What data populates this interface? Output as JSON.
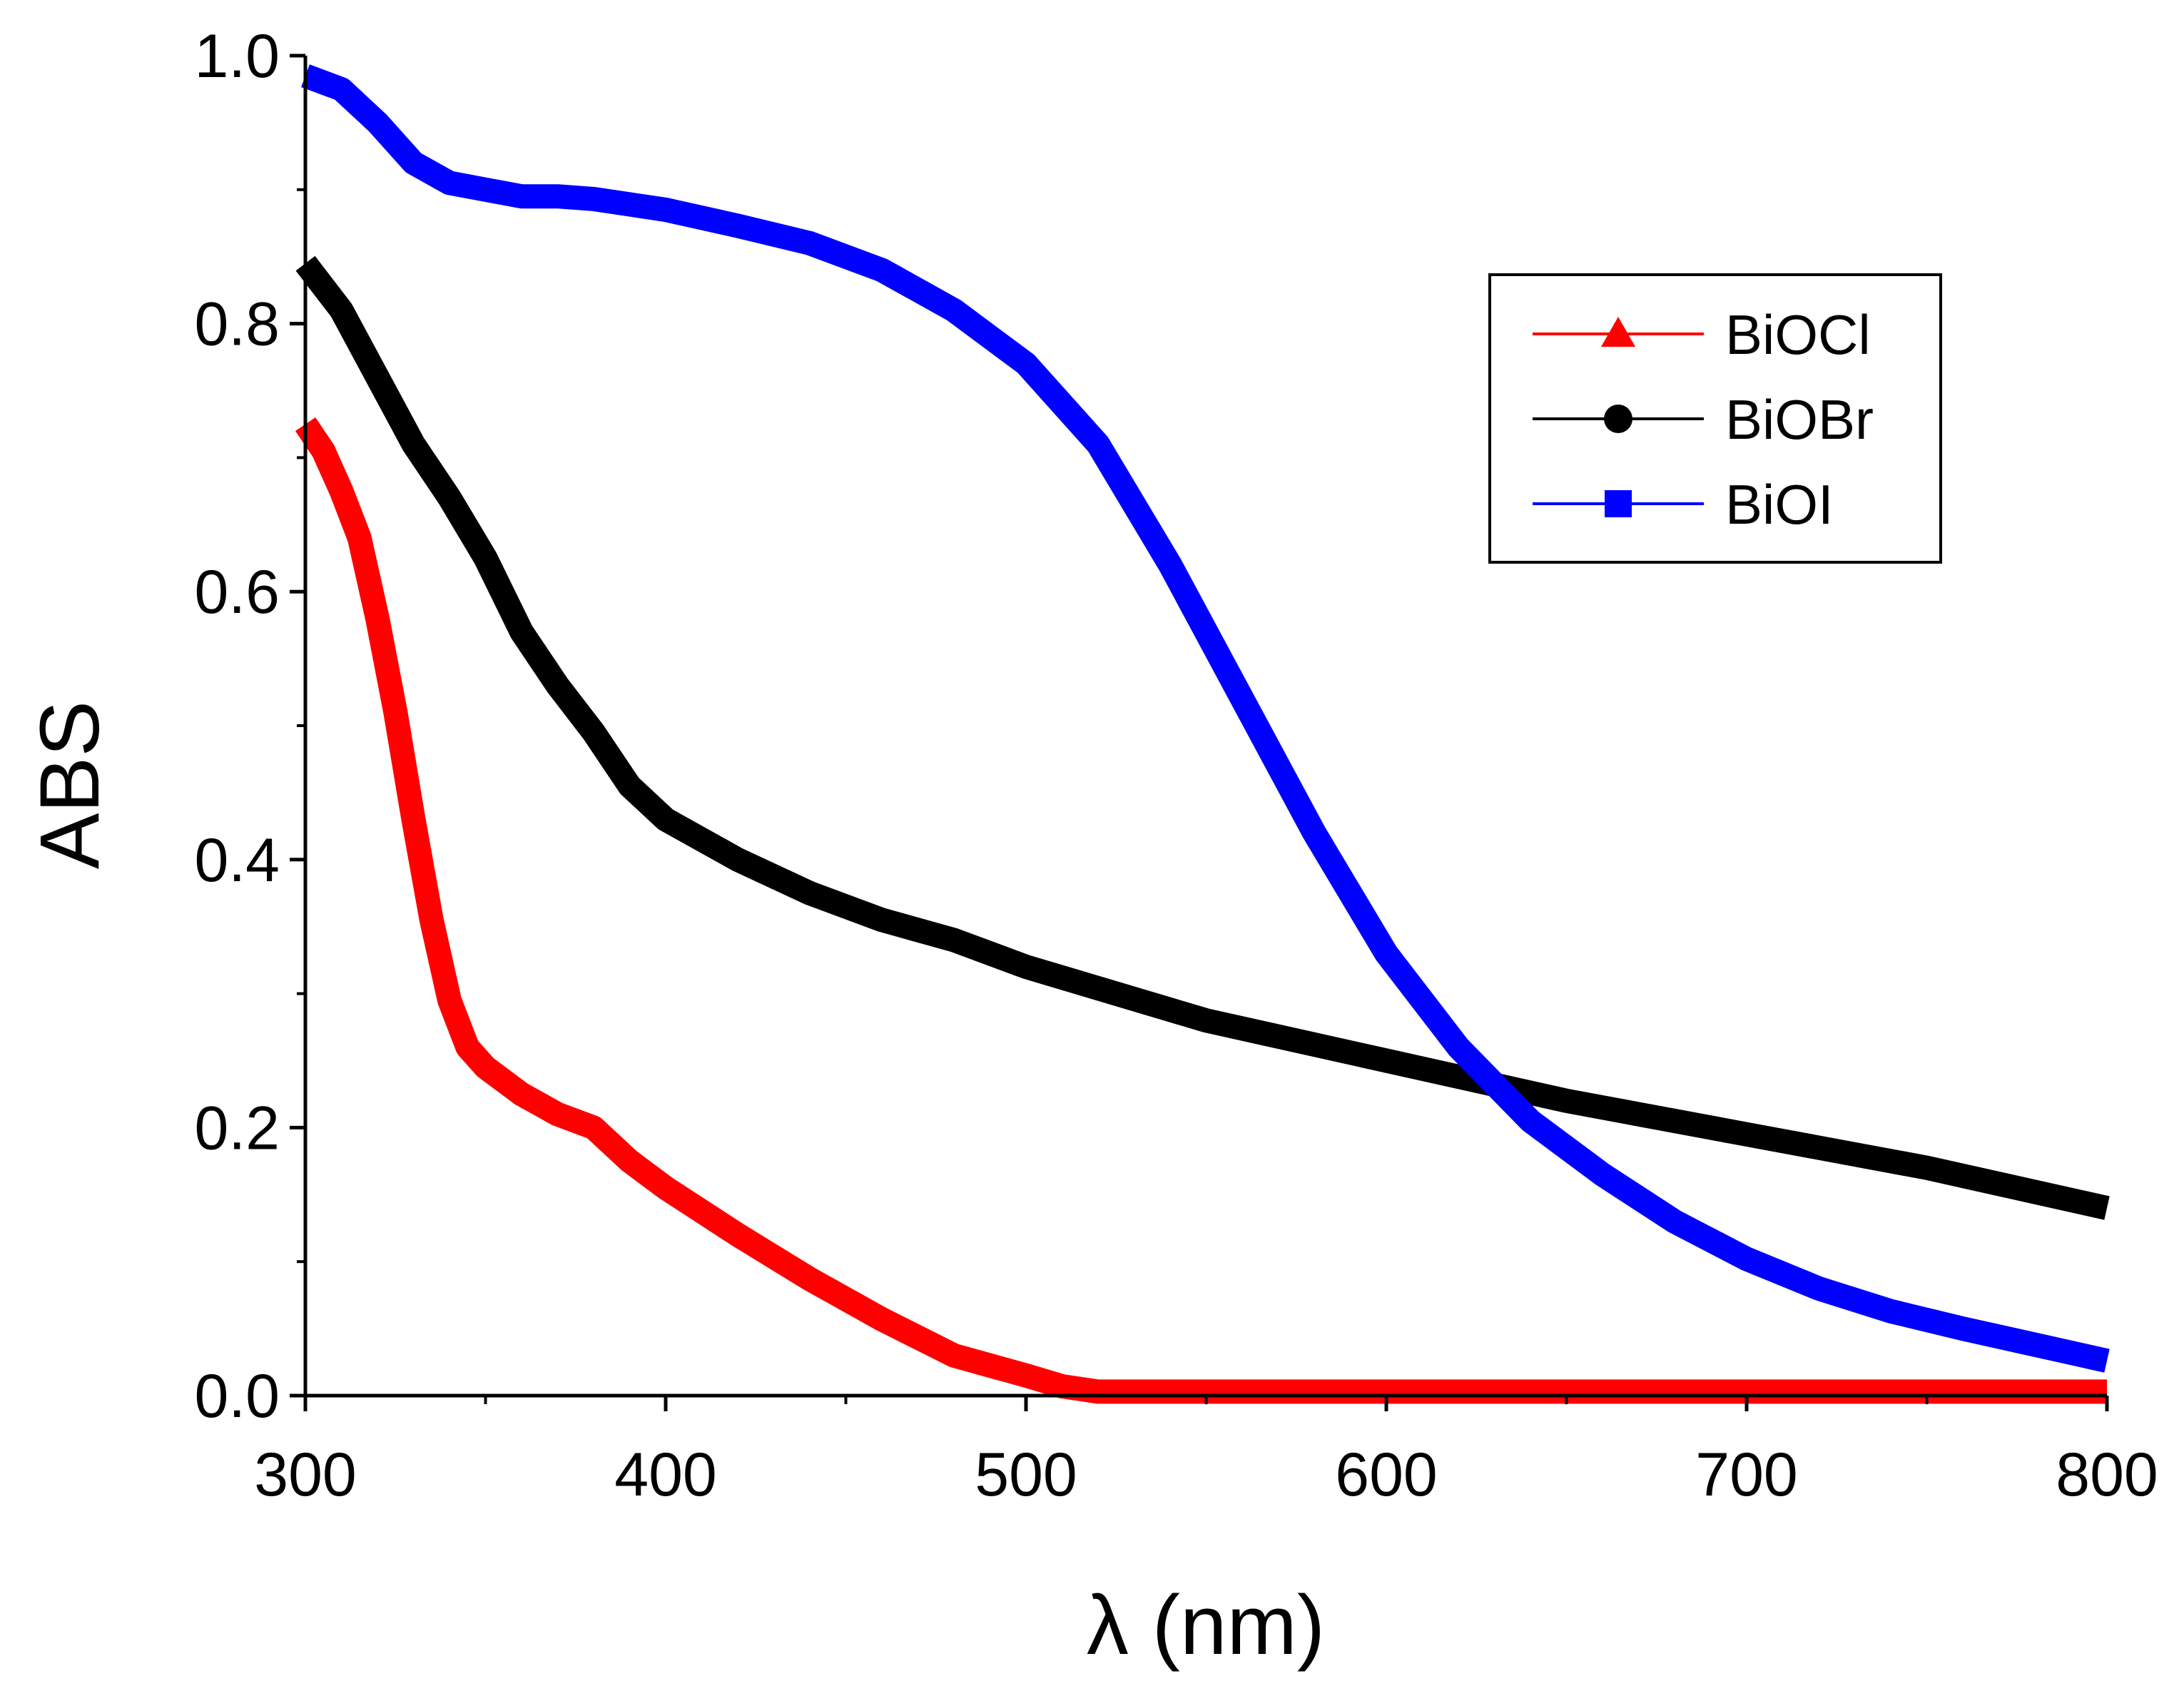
{
  "chart_data": {
    "type": "line",
    "title": "",
    "xlabel": "λ (nm)",
    "ylabel": "ABS",
    "xlim": [
      300,
      800
    ],
    "ylim": [
      0.0,
      1.0
    ],
    "xticks": [
      300,
      400,
      500,
      600,
      700,
      800
    ],
    "xtick_labels": [
      "300",
      "400",
      "500",
      "600",
      "700",
      "800"
    ],
    "yticks": [
      0.0,
      0.2,
      0.4,
      0.6,
      0.8,
      1.0
    ],
    "ytick_labels": [
      "0.0",
      "0.2",
      "0.4",
      "0.6",
      "0.8",
      "1.0"
    ],
    "legend_position": "top-right",
    "grid": false,
    "series": [
      {
        "name": "BiOCl",
        "color": "#ff0000",
        "marker": "triangle",
        "x": [
          300,
          305,
          310,
          315,
          320,
          325,
          330,
          335,
          340,
          345,
          350,
          360,
          370,
          380,
          390,
          400,
          420,
          440,
          460,
          480,
          500,
          510,
          520,
          530,
          560,
          600,
          650,
          700,
          750,
          800
        ],
        "y": [
          0.725,
          0.705,
          0.675,
          0.64,
          0.58,
          0.51,
          0.43,
          0.355,
          0.295,
          0.26,
          0.245,
          0.225,
          0.21,
          0.2,
          0.175,
          0.155,
          0.12,
          0.087,
          0.057,
          0.03,
          0.015,
          0.007,
          0.003,
          0.003,
          0.003,
          0.003,
          0.003,
          0.003,
          0.003,
          0.003
        ]
      },
      {
        "name": "BiOBr",
        "color": "#000000",
        "marker": "circle",
        "x": [
          300,
          310,
          320,
          330,
          340,
          350,
          360,
          370,
          380,
          390,
          400,
          420,
          440,
          460,
          480,
          500,
          550,
          600,
          650,
          700,
          750,
          800
        ],
        "y": [
          0.845,
          0.81,
          0.76,
          0.71,
          0.67,
          0.625,
          0.57,
          0.53,
          0.495,
          0.455,
          0.43,
          0.4,
          0.375,
          0.355,
          0.34,
          0.32,
          0.28,
          0.25,
          0.22,
          0.195,
          0.17,
          0.14
        ]
      },
      {
        "name": "BiOI",
        "color": "#0000ff",
        "marker": "square",
        "x": [
          300,
          310,
          320,
          330,
          340,
          350,
          360,
          370,
          380,
          400,
          420,
          440,
          460,
          480,
          500,
          520,
          540,
          560,
          580,
          600,
          620,
          640,
          660,
          680,
          700,
          720,
          740,
          760,
          780,
          800
        ],
        "y": [
          0.985,
          0.975,
          0.95,
          0.92,
          0.905,
          0.9,
          0.895,
          0.895,
          0.893,
          0.885,
          0.873,
          0.86,
          0.84,
          0.81,
          0.77,
          0.71,
          0.62,
          0.52,
          0.42,
          0.33,
          0.26,
          0.205,
          0.165,
          0.13,
          0.102,
          0.08,
          0.063,
          0.05,
          0.038,
          0.026
        ]
      }
    ]
  }
}
